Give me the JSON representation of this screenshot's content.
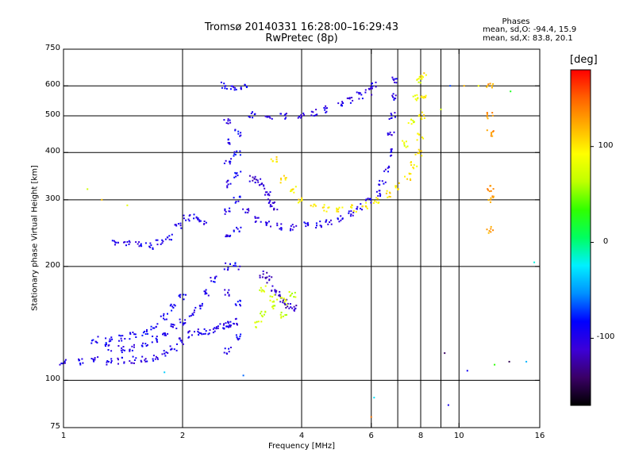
{
  "header": {
    "title_line1": "Tromsø 20140331 16:28:00–16:29:43",
    "title_line2": "RwPretec (8p)"
  },
  "stats": {
    "heading": "Phases",
    "o_line": "mean, sd,O: -94.4, 15.9",
    "x_line": "mean, sd,X:  83.8, 20.1"
  },
  "colorbar": {
    "unit": "[deg]",
    "range": [
      -170,
      180
    ],
    "tick_labels": [
      "100",
      "0",
      "-100"
    ],
    "tick_values": [
      100,
      0,
      -100
    ],
    "colormap": [
      "#000000",
      "#3a0066",
      "#3c00d8",
      "#0000ff",
      "#0090ff",
      "#00f0ff",
      "#00ff60",
      "#30ff00",
      "#c0ff00",
      "#ffff00",
      "#ffb000",
      "#ff6000",
      "#ff0000"
    ]
  },
  "chart_data": {
    "type": "scatter",
    "xlabel": "Frequency [MHz]",
    "ylabel": "Stationary phase Virtual Height [km]",
    "x_scale": "log",
    "y_scale": "log",
    "xlim": [
      1,
      16
    ],
    "ylim": [
      75,
      750
    ],
    "x_ticks": [
      1,
      2,
      4,
      6,
      8,
      10,
      16
    ],
    "x_tick_labels": [
      "1",
      "2",
      "4",
      "6",
      "8",
      "10",
      "16"
    ],
    "y_ticks": [
      75,
      100,
      200,
      300,
      400,
      500,
      600,
      750
    ],
    "y_tick_labels": [
      "75",
      "100",
      "200",
      "300",
      "400",
      "500",
      "600",
      "750"
    ],
    "x_gridlines": [
      2,
      4,
      6,
      7,
      8,
      9,
      10
    ],
    "y_gridlines": [
      100,
      200,
      300,
      400,
      500,
      600
    ],
    "color_value": "phase [deg]",
    "traces": [
      {
        "points": [
          [
            1.0,
            112
          ],
          [
            1.1,
            112
          ],
          [
            1.2,
            113
          ],
          [
            1.3,
            112
          ],
          [
            1.4,
            113
          ],
          [
            1.5,
            113
          ],
          [
            1.6,
            114
          ],
          [
            1.7,
            115
          ],
          [
            1.8,
            118
          ],
          [
            1.9,
            122
          ],
          [
            2.0,
            127
          ],
          [
            2.1,
            132
          ],
          [
            2.2,
            134
          ],
          [
            2.3,
            135
          ],
          [
            2.4,
            136
          ],
          [
            2.5,
            138
          ],
          [
            2.6,
            140
          ],
          [
            2.7,
            143
          ]
        ],
        "phase": -100
      },
      {
        "points": [
          [
            1.3,
            122
          ],
          [
            1.4,
            121
          ],
          [
            1.5,
            122
          ],
          [
            1.6,
            125
          ],
          [
            1.7,
            128
          ],
          [
            1.8,
            133
          ],
          [
            1.9,
            138
          ],
          [
            2.0,
            143
          ],
          [
            2.1,
            150
          ],
          [
            2.2,
            158
          ],
          [
            2.3,
            170
          ],
          [
            2.4,
            185
          ]
        ],
        "phase": -95
      },
      {
        "points": [
          [
            1.2,
            128
          ],
          [
            1.3,
            128
          ],
          [
            1.4,
            129
          ],
          [
            1.5,
            131
          ],
          [
            1.6,
            134
          ],
          [
            1.7,
            139
          ],
          [
            1.8,
            147
          ],
          [
            1.9,
            156
          ],
          [
            2.0,
            165
          ]
        ],
        "phase": -90
      },
      {
        "points": [
          [
            1.35,
            233
          ],
          [
            1.45,
            232
          ],
          [
            1.55,
            228
          ],
          [
            1.65,
            226
          ],
          [
            1.75,
            230
          ],
          [
            1.85,
            240
          ],
          [
            1.95,
            255
          ],
          [
            2.05,
            268
          ],
          [
            2.15,
            270
          ],
          [
            2.25,
            262
          ]
        ],
        "phase": -95
      },
      {
        "points": [
          [
            2.6,
            120
          ],
          [
            2.6,
            140
          ],
          [
            2.6,
            170
          ],
          [
            2.6,
            200
          ],
          [
            2.6,
            240
          ],
          [
            2.6,
            280
          ],
          [
            2.6,
            330
          ],
          [
            2.6,
            380
          ],
          [
            2.6,
            430
          ],
          [
            2.6,
            480
          ]
        ],
        "phase": -100
      },
      {
        "points": [
          [
            2.75,
            130
          ],
          [
            2.75,
            160
          ],
          [
            2.75,
            200
          ],
          [
            2.75,
            250
          ],
          [
            2.75,
            300
          ],
          [
            2.75,
            350
          ],
          [
            2.75,
            400
          ],
          [
            2.75,
            450
          ]
        ],
        "phase": -90
      },
      {
        "points": [
          [
            2.9,
            280
          ],
          [
            3.1,
            265
          ],
          [
            3.3,
            258
          ],
          [
            3.5,
            255
          ],
          [
            3.8,
            254
          ],
          [
            4.1,
            256
          ],
          [
            4.4,
            258
          ],
          [
            4.7,
            262
          ],
          [
            5.0,
            268
          ],
          [
            5.3,
            276
          ],
          [
            5.6,
            288
          ],
          [
            5.9,
            300
          ],
          [
            6.2,
            312
          ],
          [
            6.4,
            330
          ],
          [
            6.55,
            360
          ],
          [
            6.65,
            400
          ],
          [
            6.72,
            450
          ],
          [
            6.78,
            500
          ],
          [
            6.83,
            560
          ],
          [
            6.88,
            620
          ]
        ],
        "phase": -100
      },
      {
        "points": [
          [
            3.0,
            505
          ],
          [
            3.3,
            500
          ],
          [
            3.6,
            500
          ],
          [
            4.0,
            503
          ],
          [
            4.3,
            510
          ],
          [
            4.6,
            520
          ],
          [
            5.0,
            535
          ],
          [
            5.3,
            548
          ],
          [
            5.6,
            565
          ],
          [
            5.9,
            580
          ],
          [
            6.1,
            600
          ]
        ],
        "phase": -100
      },
      {
        "points": [
          [
            2.55,
            600
          ],
          [
            2.7,
            597
          ],
          [
            2.85,
            594
          ]
        ],
        "phase": -95
      },
      {
        "points": [
          [
            3.0,
            340
          ],
          [
            3.1,
            335
          ],
          [
            3.2,
            325
          ],
          [
            3.3,
            310
          ],
          [
            3.35,
            295
          ],
          [
            3.4,
            285
          ]
        ],
        "phase": -110
      },
      {
        "points": [
          [
            3.2,
            190
          ],
          [
            3.3,
            185
          ],
          [
            3.4,
            175
          ],
          [
            3.5,
            168
          ],
          [
            3.6,
            162
          ],
          [
            3.7,
            158
          ],
          [
            3.8,
            155
          ]
        ],
        "phase": -115
      },
      {
        "points": [
          [
            3.4,
            385
          ],
          [
            3.6,
            340
          ],
          [
            3.8,
            318
          ],
          [
            4.0,
            300
          ],
          [
            4.3,
            290
          ],
          [
            4.6,
            285
          ],
          [
            5.0,
            282
          ],
          [
            5.4,
            285
          ],
          [
            5.8,
            290
          ],
          [
            6.2,
            298
          ],
          [
            6.6,
            310
          ],
          [
            7.0,
            325
          ],
          [
            7.4,
            345
          ],
          [
            7.7,
            370
          ],
          [
            7.9,
            400
          ],
          [
            8.0,
            440
          ],
          [
            8.05,
            500
          ],
          [
            8.1,
            560
          ],
          [
            8.1,
            640
          ]
        ],
        "phase": 100
      },
      {
        "points": [
          [
            3.1,
            140
          ],
          [
            3.2,
            150
          ],
          [
            3.4,
            158
          ],
          [
            3.6,
            162
          ],
          [
            3.8,
            168
          ],
          [
            3.2,
            175
          ],
          [
            3.4,
            165
          ],
          [
            3.6,
            148
          ]
        ],
        "phase": 70
      },
      {
        "points": [
          [
            7.3,
            420
          ],
          [
            7.6,
            480
          ],
          [
            7.8,
            560
          ],
          [
            7.9,
            620
          ]
        ],
        "phase": 80
      },
      {
        "points": [
          [
            12.0,
            600
          ],
          [
            12.0,
            500
          ],
          [
            12.0,
            450
          ],
          [
            12.0,
            320
          ],
          [
            12.0,
            300
          ],
          [
            12.0,
            250
          ]
        ],
        "phase": 130
      },
      {
        "points": [
          [
            1.15,
            320
          ],
          [
            1.25,
            300
          ],
          [
            1.45,
            290
          ],
          [
            1.8,
            105
          ],
          [
            2.85,
            103
          ],
          [
            6.0,
            80
          ],
          [
            6.1,
            90
          ],
          [
            9.2,
            118
          ],
          [
            9.4,
            86
          ],
          [
            10.5,
            106
          ],
          [
            12.3,
            110
          ],
          [
            13.4,
            112
          ],
          [
            14.8,
            112
          ],
          [
            15.5,
            205
          ],
          [
            9.0,
            520
          ],
          [
            9.5,
            600
          ],
          [
            10.3,
            600
          ],
          [
            11.2,
            600
          ],
          [
            13.5,
            580
          ]
        ],
        "phase": 0
      }
    ]
  }
}
